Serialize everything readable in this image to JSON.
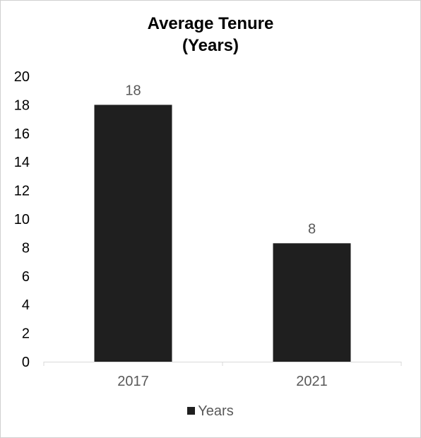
{
  "chart_data": {
    "type": "bar",
    "title_lines": [
      "Average Tenure",
      "(Years)"
    ],
    "categories": [
      "2017",
      "2021"
    ],
    "series": [
      {
        "name": "Years",
        "values": [
          18,
          8.3
        ],
        "labels": [
          "18",
          "8"
        ]
      }
    ],
    "ylim": [
      0,
      20
    ],
    "yticks": [
      0,
      2,
      4,
      6,
      8,
      10,
      12,
      14,
      16,
      18,
      20
    ],
    "grid": false,
    "legend": "bottom",
    "bar_color": "#1f1f1f",
    "axis_color": "#d9d9d9",
    "text_color": "#595959"
  }
}
